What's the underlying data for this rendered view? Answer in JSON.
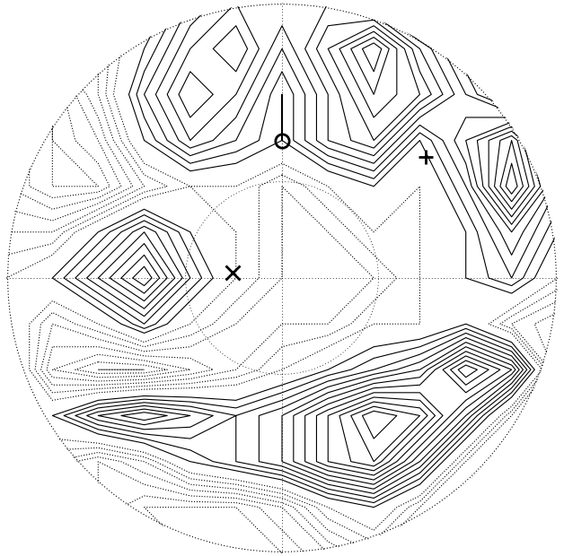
{
  "chart_data": {
    "type": "contour",
    "tick_labels": false,
    "grid": true,
    "xlim": [
      -1,
      1
    ],
    "ylim": [
      -1,
      1
    ],
    "x": [
      -1,
      -0.833,
      -0.667,
      -0.5,
      -0.333,
      -0.167,
      0,
      0.167,
      0.333,
      0.5,
      0.667,
      0.833,
      1
    ],
    "y": [
      1,
      0.833,
      0.667,
      0.5,
      0.333,
      0.167,
      0,
      -0.167,
      -0.333,
      -0.5,
      -0.667,
      -0.833,
      -1
    ],
    "field": [
      [
        0,
        0,
        0,
        0,
        2,
        3,
        3,
        3,
        2,
        0,
        0,
        0,
        0
      ],
      [
        -1,
        -1,
        -1,
        1,
        3,
        4,
        2,
        4,
        6,
        3,
        1,
        0,
        0
      ],
      [
        -2,
        -3,
        -1,
        2,
        4,
        3,
        1,
        3,
        5,
        4,
        2,
        0,
        0
      ],
      [
        -2,
        -3,
        -2,
        1,
        3,
        2,
        1,
        3,
        4,
        1,
        3,
        5,
        1
      ],
      [
        -2,
        -3,
        -3,
        -1,
        0,
        0,
        -1,
        0,
        1,
        0,
        2,
        6,
        2
      ],
      [
        -1,
        -1,
        1,
        3,
        1,
        0,
        -1,
        -1,
        0,
        0,
        1,
        3,
        1
      ],
      [
        0,
        1,
        3,
        5,
        2,
        0,
        -1,
        -1,
        -1,
        0,
        1,
        2,
        0
      ],
      [
        1,
        -1,
        0,
        2,
        0,
        -1,
        -1,
        -1,
        0,
        0,
        1,
        -1,
        -2
      ],
      [
        2,
        -2,
        -3,
        -3,
        -2,
        -1,
        0,
        1,
        2,
        3,
        6,
        4,
        -2
      ],
      [
        1,
        1,
        3,
        4,
        3,
        2,
        3,
        5,
        7,
        6,
        3,
        -1,
        -2
      ],
      [
        0,
        -1,
        -2,
        -1,
        1,
        2,
        3,
        5,
        6,
        3,
        -1,
        -2,
        -1
      ],
      [
        0,
        0,
        -2,
        -3,
        -3,
        -3,
        -2,
        0,
        1,
        -1,
        -2,
        -1,
        0
      ],
      [
        0,
        0,
        -1,
        -2,
        -3,
        -3,
        -3,
        -2,
        -1,
        -1,
        0,
        0,
        0
      ]
    ],
    "series": [
      {
        "line_style": "solid",
        "color": "#000000",
        "levels": [
          1,
          1.5,
          2,
          2.5,
          3,
          3.5,
          4,
          4.5,
          5,
          5.5,
          6,
          6.5,
          7
        ]
      },
      {
        "line_style": "dotted",
        "color": "#000000",
        "levels": [
          -4,
          -3.5,
          -3,
          -2.5,
          -2,
          -1.5,
          -1,
          -0.5,
          0
        ]
      }
    ],
    "markers": [
      {
        "marker": "o",
        "x": 0.0,
        "y": 0.5
      },
      {
        "marker": "+",
        "x": 0.52,
        "y": 0.44
      },
      {
        "marker": "x",
        "x": -0.18,
        "y": 0.02
      }
    ]
  }
}
